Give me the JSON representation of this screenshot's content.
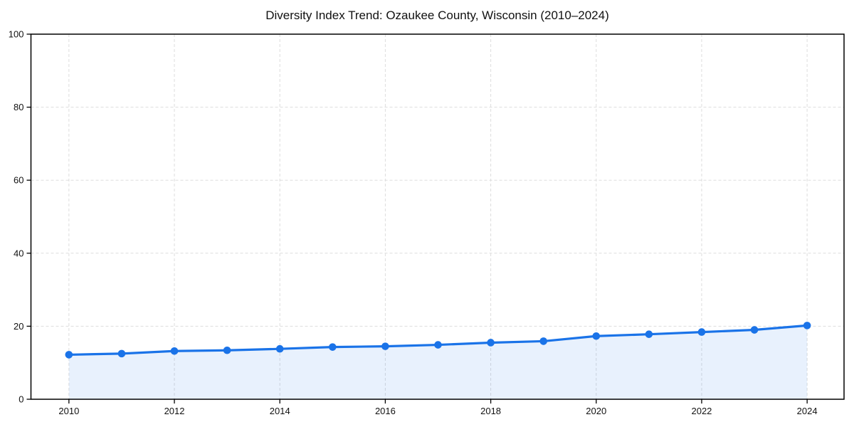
{
  "chart_data": {
    "type": "area",
    "title": "Diversity Index Trend: Ozaukee County, Wisconsin (2010–2024)",
    "x": [
      2010,
      2011,
      2012,
      2013,
      2014,
      2015,
      2016,
      2017,
      2018,
      2019,
      2020,
      2021,
      2022,
      2023,
      2024
    ],
    "series": [
      {
        "name": "Diversity Index",
        "values": [
          12.2,
          12.5,
          13.2,
          13.4,
          13.8,
          14.3,
          14.5,
          14.9,
          15.5,
          15.9,
          17.3,
          17.8,
          18.4,
          19.0,
          20.2
        ]
      }
    ],
    "xlabel": "",
    "ylabel": "",
    "xlim": [
      2009.28,
      2024.7
    ],
    "ylim": [
      0,
      100
    ],
    "xticks": [
      2010,
      2012,
      2014,
      2016,
      2018,
      2020,
      2022,
      2024
    ],
    "yticks": [
      0,
      20,
      40,
      60,
      80,
      100
    ],
    "grid": "dashed",
    "legend": "none",
    "colors": {
      "line": "#1a73e8",
      "marker": "#1a73e8",
      "fill": "#1a73e8",
      "fill_opacity": 0.1,
      "grid": "#dddddd",
      "axis": "#000000",
      "text": "#111111"
    }
  }
}
